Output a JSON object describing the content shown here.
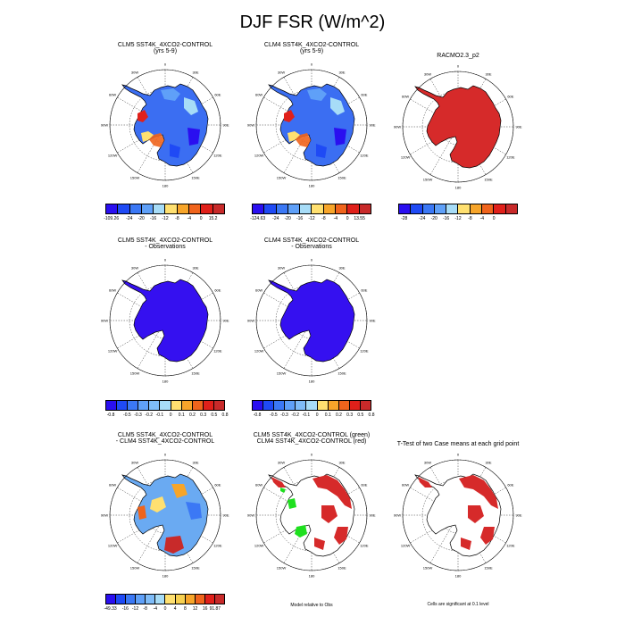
{
  "title": "DJF FSR (W/m^2)",
  "panels": [
    {
      "id": "p1",
      "title": "CLM5 SST4K_4XCO2-CONTROL\n(yrs 5-9)",
      "style": "mixed"
    },
    {
      "id": "p2",
      "title": "CLM4 SST4K_4XCO2-CONTROL\n(yrs 5-9)",
      "style": "mixed"
    },
    {
      "id": "p3",
      "title": "RACMO2.3_p2",
      "style": "red"
    },
    {
      "id": "p4",
      "title": "CLM5 SST4K_4XCO2-CONTROL\n- Observations",
      "style": "blue"
    },
    {
      "id": "p5",
      "title": "CLM4 SST4K_4XCO2-CONTROL\n- Observations",
      "style": "blue"
    },
    {
      "id": "p6",
      "title": "CLM5 SST4K_4XCO2-CONTROL\n- CLM4 SST4K_4XCO2-CONTROL",
      "style": "diff"
    },
    {
      "id": "p7",
      "title": "CLM5 SST4K_4XCO2-CONTROL (green)\nCLM4 SST4K_4XCO2-CONTROL (red)",
      "style": "redgreen"
    },
    {
      "id": "p8",
      "title": "T-Test of two Case means at each grid point",
      "style": "redonly"
    }
  ],
  "lon_labels": [
    "0",
    "30E",
    "60E",
    "90E",
    "120E",
    "150E",
    "180",
    "150W",
    "120W",
    "90W",
    "60W",
    "30W"
  ],
  "colorbars": [
    {
      "id": "cb1",
      "colors": [
        "#2a0ff0",
        "#1f4af5",
        "#3b78f5",
        "#5fa0f8",
        "#a7dcf7",
        "#ffe070",
        "#f7a52a",
        "#f0641c",
        "#e0201a",
        "#c82a2a"
      ],
      "labels": [
        "-109.26",
        "-24",
        "-20",
        "-16",
        "-12",
        "-8",
        "-4",
        "0",
        "15.2"
      ]
    },
    {
      "id": "cb2",
      "colors": [
        "#2a0ff0",
        "#1f4af5",
        "#3b78f5",
        "#5fa0f8",
        "#a7dcf7",
        "#ffe070",
        "#f7a52a",
        "#f0641c",
        "#e0201a",
        "#c82a2a"
      ],
      "labels": [
        "-124.63",
        "-24",
        "-20",
        "-16",
        "-12",
        "-8",
        "-4",
        "0",
        "13.55"
      ]
    },
    {
      "id": "cb3",
      "colors": [
        "#2a0ff0",
        "#1f4af5",
        "#3b78f5",
        "#5fa0f8",
        "#a7dcf7",
        "#ffe070",
        "#f7a52a",
        "#f0641c",
        "#e0201a",
        "#c82a2a"
      ],
      "labels": [
        "-28",
        "-24",
        "-20",
        "-16",
        "-12",
        "-8",
        "-4",
        "0"
      ]
    },
    {
      "id": "cb4",
      "colors": [
        "#2a0ff0",
        "#1f4af5",
        "#3b78f5",
        "#5fa0f8",
        "#7fbcf8",
        "#a7dcf7",
        "#ffe070",
        "#f7a52a",
        "#f0641c",
        "#e0201a",
        "#c82a2a"
      ],
      "labels": [
        "-0.8",
        "-0.5",
        "-0.3",
        "-0.2",
        "-0.1",
        "0",
        "0.1",
        "0.2",
        "0.3",
        "0.5",
        "0.8"
      ]
    },
    {
      "id": "cb5",
      "colors": [
        "#2a0ff0",
        "#1f4af5",
        "#3b78f5",
        "#5fa0f8",
        "#7fbcf8",
        "#a7dcf7",
        "#ffe070",
        "#f7a52a",
        "#f0641c",
        "#e0201a",
        "#c82a2a"
      ],
      "labels": [
        "-0.8",
        "-0.5",
        "-0.3",
        "-0.2",
        "-0.1",
        "0",
        "0.1",
        "0.2",
        "0.3",
        "0.5",
        "0.8"
      ]
    },
    {
      "id": "cb6",
      "colors": [
        "#2a0ff0",
        "#1f4af5",
        "#3b78f5",
        "#5fa0f8",
        "#7fbcf8",
        "#a7dcf7",
        "#ffe070",
        "#f7d050",
        "#f7a52a",
        "#f0641c",
        "#e0201a",
        "#c82a2a"
      ],
      "labels": [
        "-49.33",
        "-16",
        "-12",
        "-8",
        "-4",
        "0",
        "4",
        "8",
        "12",
        "16",
        "91.87"
      ]
    }
  ],
  "notes": {
    "model_relative": "Model relative to Obs",
    "significance": "Cells are significant at 0.1 level"
  },
  "colors": {
    "blue_fill": "#3510f0",
    "red_fill": "#d62a2a",
    "green_fill": "#1fe01f",
    "outline": "#000000"
  }
}
